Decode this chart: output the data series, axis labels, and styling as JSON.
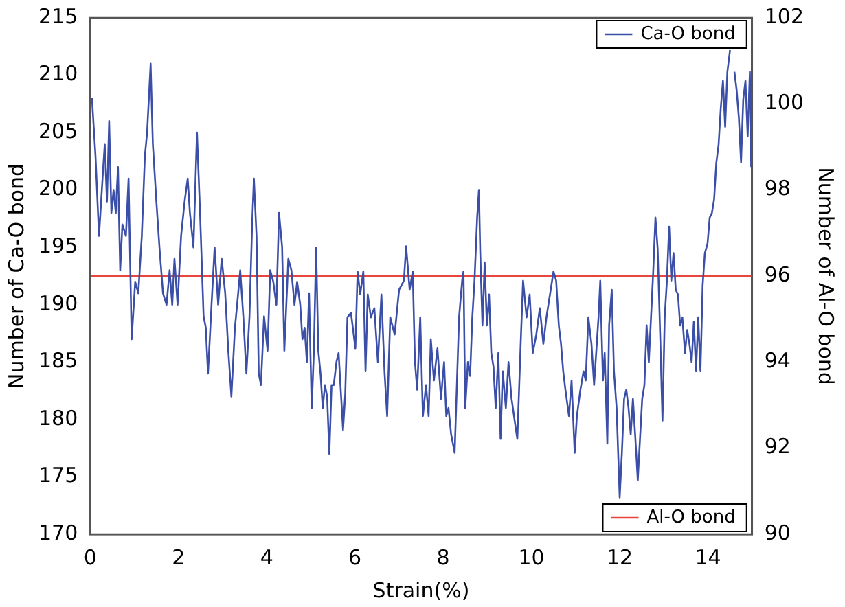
{
  "chart_data": {
    "type": "line",
    "xlabel": "Strain(%)",
    "ylabel": "Number of Ca-O bond",
    "y2label": "Number of Al-O bond",
    "xlim": [
      0,
      15
    ],
    "xticks": [
      0,
      2,
      4,
      6,
      8,
      10,
      12,
      14
    ],
    "ylim": [
      170,
      215
    ],
    "yticks": [
      170,
      175,
      180,
      185,
      190,
      195,
      200,
      205,
      210,
      215
    ],
    "y2lim": [
      90,
      102
    ],
    "y2ticks": [
      90,
      92,
      94,
      96,
      98,
      100,
      102
    ],
    "grid": false,
    "legend": "right",
    "marker": "none",
    "line_style": "solid",
    "series": [
      {
        "name": "Ca-O bond",
        "color": "#3b4fa8",
        "axis": "y",
        "x": [
          0.04,
          0.12,
          0.2,
          0.28,
          0.33,
          0.38,
          0.43,
          0.48,
          0.53,
          0.58,
          0.63,
          0.68,
          0.73,
          0.81,
          0.87,
          0.94,
          1.02,
          1.09,
          1.17,
          1.24,
          1.29,
          1.37,
          1.42,
          1.5,
          1.57,
          1.65,
          1.73,
          1.8,
          1.86,
          1.91,
          1.98,
          2.06,
          2.14,
          2.21,
          2.26,
          2.34,
          2.42,
          2.49,
          2.57,
          2.62,
          2.67,
          2.75,
          2.82,
          2.9,
          2.98,
          3.06,
          3.13,
          3.2,
          3.28,
          3.33,
          3.4,
          3.47,
          3.54,
          3.61,
          3.67,
          3.71,
          3.77,
          3.82,
          3.87,
          3.94,
          4.02,
          4.08,
          4.15,
          4.22,
          4.28,
          4.35,
          4.4,
          4.49,
          4.56,
          4.63,
          4.69,
          4.76,
          4.81,
          4.86,
          4.91,
          4.96,
          5.02,
          5.07,
          5.12,
          5.17,
          5.22,
          5.27,
          5.32,
          5.37,
          5.42,
          5.47,
          5.52,
          5.58,
          5.63,
          5.73,
          5.78,
          5.83,
          5.91,
          6.01,
          6.06,
          6.12,
          6.19,
          6.24,
          6.29,
          6.36,
          6.44,
          6.52,
          6.6,
          6.67,
          6.73,
          6.8,
          6.9,
          7.0,
          7.11,
          7.16,
          7.24,
          7.31,
          7.36,
          7.41,
          7.48,
          7.54,
          7.61,
          7.67,
          7.72,
          7.79,
          7.87,
          7.95,
          8.02,
          8.07,
          8.12,
          8.18,
          8.26,
          8.3,
          8.36,
          8.43,
          8.46,
          8.5,
          8.56,
          8.61,
          8.66,
          8.71,
          8.77,
          8.81,
          8.84,
          8.89,
          8.94,
          8.99,
          9.04,
          9.09,
          9.14,
          9.19,
          9.25,
          9.3,
          9.35,
          9.42,
          9.48,
          9.55,
          9.62,
          9.68,
          9.76,
          9.81,
          9.89,
          9.96,
          10.03,
          10.11,
          10.19,
          10.27,
          10.34,
          10.42,
          10.5,
          10.56,
          10.62,
          10.67,
          10.72,
          10.77,
          10.85,
          10.91,
          10.98,
          11.03,
          11.11,
          11.18,
          11.23,
          11.29,
          11.36,
          11.42,
          11.52,
          11.56,
          11.62,
          11.66,
          11.72,
          11.76,
          11.82,
          11.87,
          11.93,
          12.0,
          12.05,
          12.1,
          12.15,
          12.2,
          12.25,
          12.3,
          12.35,
          12.41,
          12.46,
          12.51,
          12.56,
          12.61,
          12.66,
          12.71,
          12.76,
          12.81,
          12.86,
          12.92,
          12.97,
          13.02,
          13.07,
          13.12,
          13.17,
          13.22,
          13.27,
          13.32,
          13.37,
          13.42,
          13.48,
          13.53,
          13.58,
          13.63,
          13.68,
          13.73,
          13.78,
          13.83,
          13.88,
          13.93,
          13.99,
          14.04,
          14.09,
          14.14,
          14.19,
          14.24,
          14.29,
          14.34,
          14.39,
          14.44,
          14.5,
          14.55,
          14.6,
          14.65,
          14.7,
          14.75,
          14.8,
          14.85,
          14.9,
          14.95,
          14.98
        ],
        "values": [
          208,
          203,
          196,
          201,
          204,
          199,
          206,
          198,
          200,
          198,
          202,
          193,
          197,
          196,
          201,
          187,
          192,
          191,
          196,
          203,
          205,
          211,
          204,
          199,
          195,
          191,
          190,
          193,
          190,
          194,
          190,
          196,
          199,
          201,
          198,
          195,
          205,
          198,
          189,
          188,
          184,
          190,
          195,
          190,
          194,
          191,
          186,
          182,
          188,
          190,
          193,
          189,
          184,
          189,
          197,
          201,
          196,
          184,
          183,
          189,
          186,
          193,
          192,
          190,
          198,
          195,
          186,
          194,
          193,
          190,
          192,
          190,
          187,
          188,
          185,
          191,
          181,
          186,
          195,
          186,
          184,
          181,
          183,
          182,
          177,
          183,
          183,
          185,
          185.8,
          179.1,
          182.2,
          188.9,
          189.3,
          186.2,
          192.9,
          190.9,
          192.9,
          184.2,
          190.9,
          188.9,
          189.7,
          185,
          190.9,
          184.2,
          180.3,
          188.9,
          187.4,
          191.3,
          192.1,
          195.1,
          191.3,
          192.9,
          185,
          182.6,
          188.9,
          180.3,
          183,
          180.3,
          187,
          183.4,
          186.2,
          181.8,
          185,
          180.3,
          181,
          178.7,
          177.1,
          181.8,
          188.9,
          192.1,
          192.9,
          181,
          185,
          183.8,
          188.9,
          192.1,
          197.6,
          200,
          194.5,
          188.2,
          193.7,
          188.2,
          190.9,
          185.8,
          184.6,
          181,
          185.8,
          178.3,
          184.2,
          181,
          185,
          181.8,
          179.9,
          178.3,
          187,
          192.1,
          188.9,
          190.9,
          185.8,
          187.4,
          189.7,
          186.6,
          188.9,
          190.9,
          192.9,
          192.1,
          188.2,
          186.6,
          184.2,
          182.6,
          180.3,
          183.4,
          177.1,
          180.3,
          182.6,
          184.2,
          183.4,
          188.9,
          186.6,
          183,
          188.9,
          192.1,
          183.4,
          185.8,
          177.9,
          188.2,
          191.3,
          184.2,
          181,
          173.2,
          177.1,
          181.8,
          182.6,
          181,
          178.7,
          181.8,
          178.7,
          174.7,
          178.3,
          181.8,
          183,
          188.2,
          185,
          188.9,
          192.9,
          197.6,
          194.9,
          187,
          179.9,
          188.9,
          192.1,
          196.8,
          192.1,
          194.5,
          191.3,
          190.9,
          188.2,
          188.9,
          185.8,
          187.8,
          186.6,
          185,
          188.5,
          184.2,
          188.9,
          184.2,
          191.7,
          194.5,
          195.3,
          197.6,
          198,
          199.2,
          202.4,
          203.9,
          207.1,
          209.5,
          205.5,
          210.3,
          212.2,
          null,
          210.3,
          208.7,
          206.3,
          202.4,
          207.9,
          209.5,
          204.7,
          210.3,
          202
        ]
      },
      {
        "name": "Al-O bond",
        "color": "#e8463c",
        "axis": "y2",
        "x": [
          0,
          15
        ],
        "values": [
          96,
          96
        ]
      }
    ]
  }
}
